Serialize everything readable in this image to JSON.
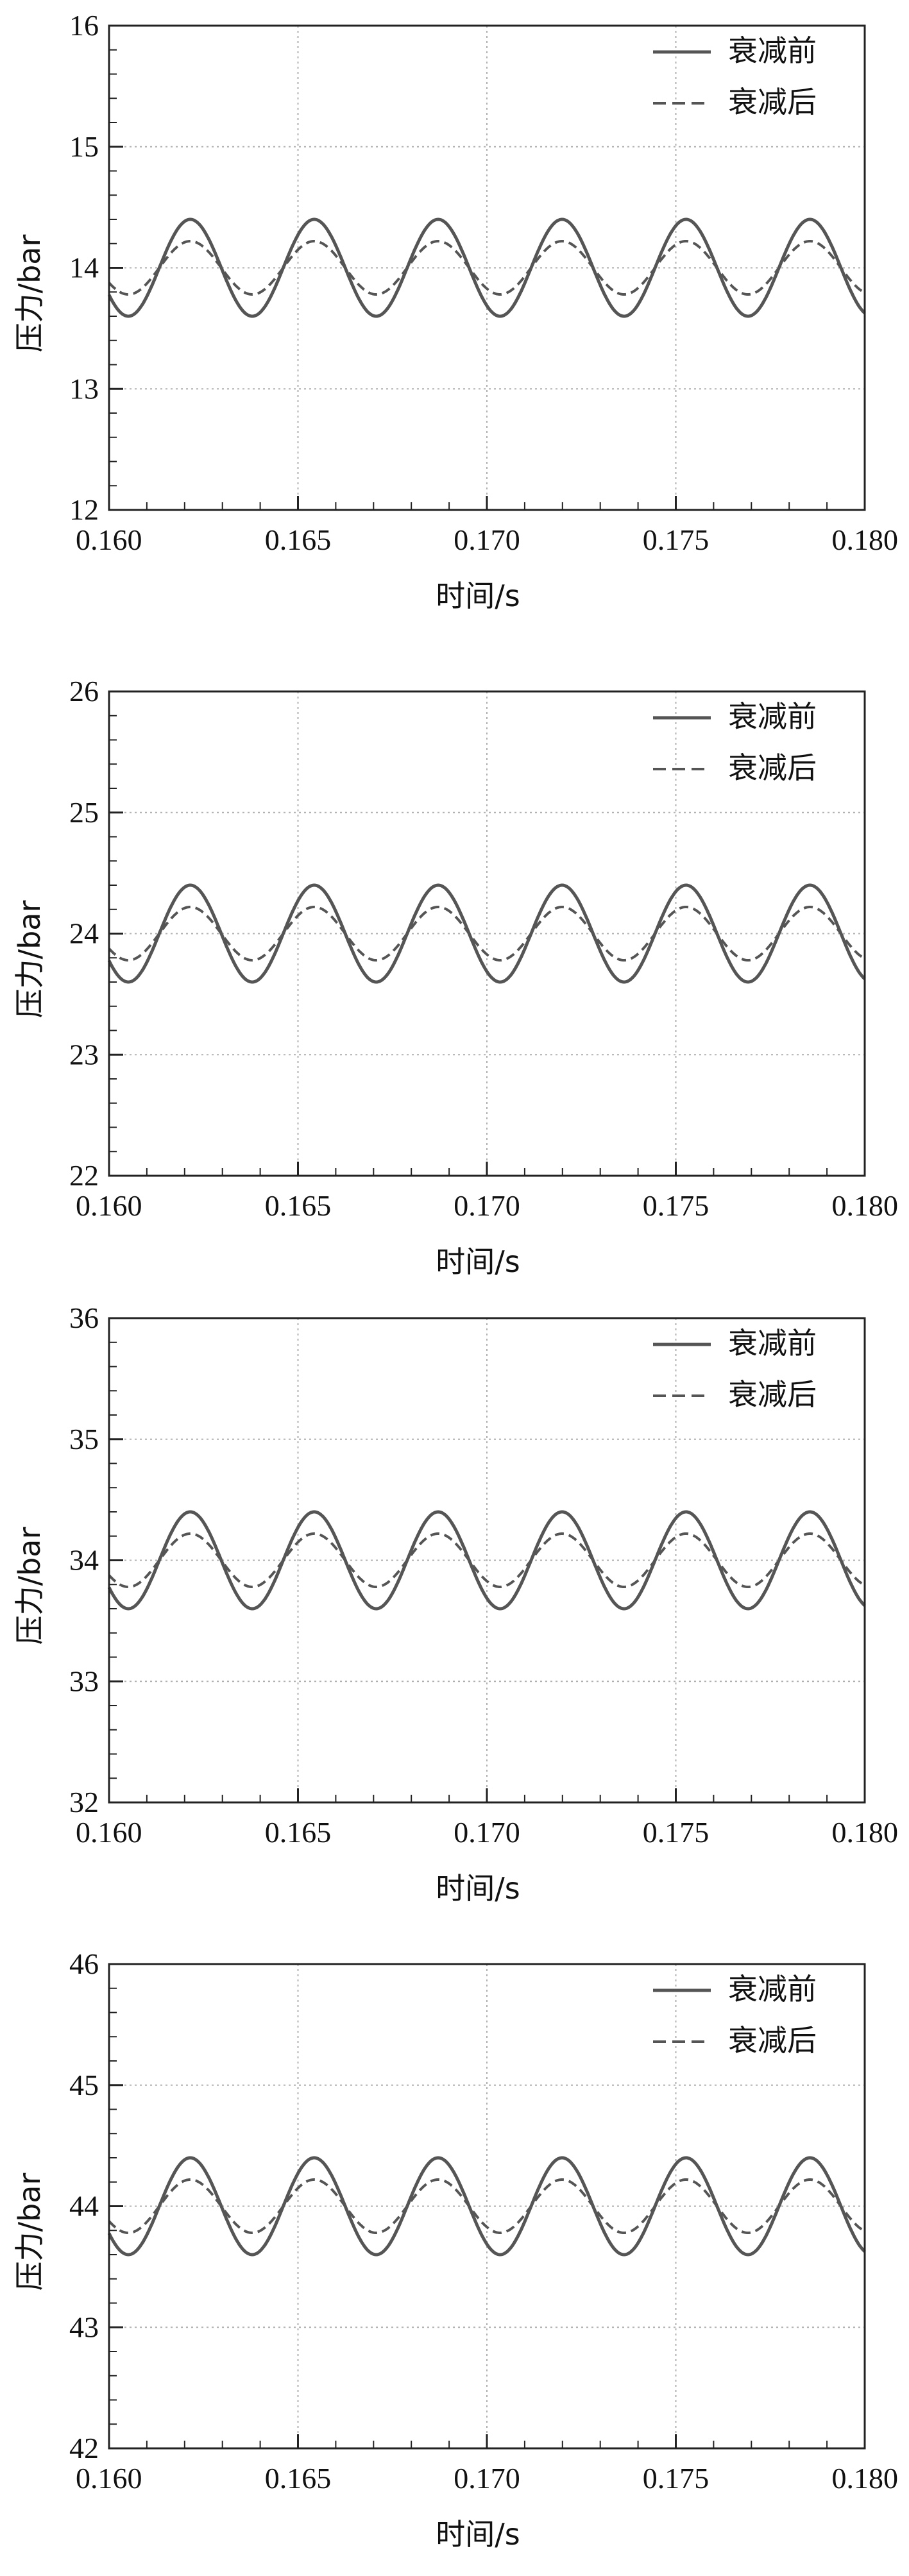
{
  "chart_data": [
    {
      "type": "line",
      "title": "",
      "xlabel": "时间/s",
      "ylabel": "压力/bar",
      "xlim": [
        0.16,
        0.18
      ],
      "ylim": [
        12,
        16
      ],
      "xticks": [
        "0.160",
        "0.165",
        "0.170",
        "0.175",
        "0.180"
      ],
      "yticks": [
        "12",
        "13",
        "14",
        "15",
        "16"
      ],
      "grid": true,
      "legend_position": "top-right",
      "waveform": {
        "period": 0.00328,
        "peak_x": 0.16215
      },
      "series": [
        {
          "name": "衰减前",
          "style": "solid",
          "color": "#555555",
          "mean": 14.0,
          "amplitude": 0.4
        },
        {
          "name": "衰减后",
          "style": "dashed",
          "color": "#555555",
          "mean": 14.0,
          "amplitude": 0.22
        }
      ]
    },
    {
      "type": "line",
      "title": "",
      "xlabel": "时间/s",
      "ylabel": "压力/bar",
      "xlim": [
        0.16,
        0.18
      ],
      "ylim": [
        22,
        26
      ],
      "xticks": [
        "0.160",
        "0.165",
        "0.170",
        "0.175",
        "0.180"
      ],
      "yticks": [
        "22",
        "23",
        "24",
        "25",
        "26"
      ],
      "grid": true,
      "legend_position": "top-right",
      "waveform": {
        "period": 0.00328,
        "peak_x": 0.16215
      },
      "series": [
        {
          "name": "衰减前",
          "style": "solid",
          "color": "#555555",
          "mean": 24.0,
          "amplitude": 0.4
        },
        {
          "name": "衰减后",
          "style": "dashed",
          "color": "#555555",
          "mean": 24.0,
          "amplitude": 0.22
        }
      ]
    },
    {
      "type": "line",
      "title": "",
      "xlabel": "时间/s",
      "ylabel": "压力/bar",
      "xlim": [
        0.16,
        0.18
      ],
      "ylim": [
        32,
        36
      ],
      "xticks": [
        "0.160",
        "0.165",
        "0.170",
        "0.175",
        "0.180"
      ],
      "yticks": [
        "32",
        "33",
        "34",
        "35",
        "36"
      ],
      "grid": true,
      "legend_position": "top-right",
      "waveform": {
        "period": 0.00328,
        "peak_x": 0.16215
      },
      "series": [
        {
          "name": "衰减前",
          "style": "solid",
          "color": "#555555",
          "mean": 34.0,
          "amplitude": 0.4
        },
        {
          "name": "衰减后",
          "style": "dashed",
          "color": "#555555",
          "mean": 34.0,
          "amplitude": 0.22
        }
      ]
    },
    {
      "type": "line",
      "title": "",
      "xlabel": "时间/s",
      "ylabel": "压力/bar",
      "xlim": [
        0.16,
        0.18
      ],
      "ylim": [
        42,
        46
      ],
      "xticks": [
        "0.160",
        "0.165",
        "0.170",
        "0.175",
        "0.180"
      ],
      "yticks": [
        "42",
        "43",
        "44",
        "45",
        "46"
      ],
      "grid": true,
      "legend_position": "top-right",
      "waveform": {
        "period": 0.00328,
        "peak_x": 0.16215
      },
      "series": [
        {
          "name": "衰减前",
          "style": "solid",
          "color": "#555555",
          "mean": 44.0,
          "amplitude": 0.4
        },
        {
          "name": "衰减后",
          "style": "dashed",
          "color": "#555555",
          "mean": 44.0,
          "amplitude": 0.22
        }
      ]
    }
  ]
}
